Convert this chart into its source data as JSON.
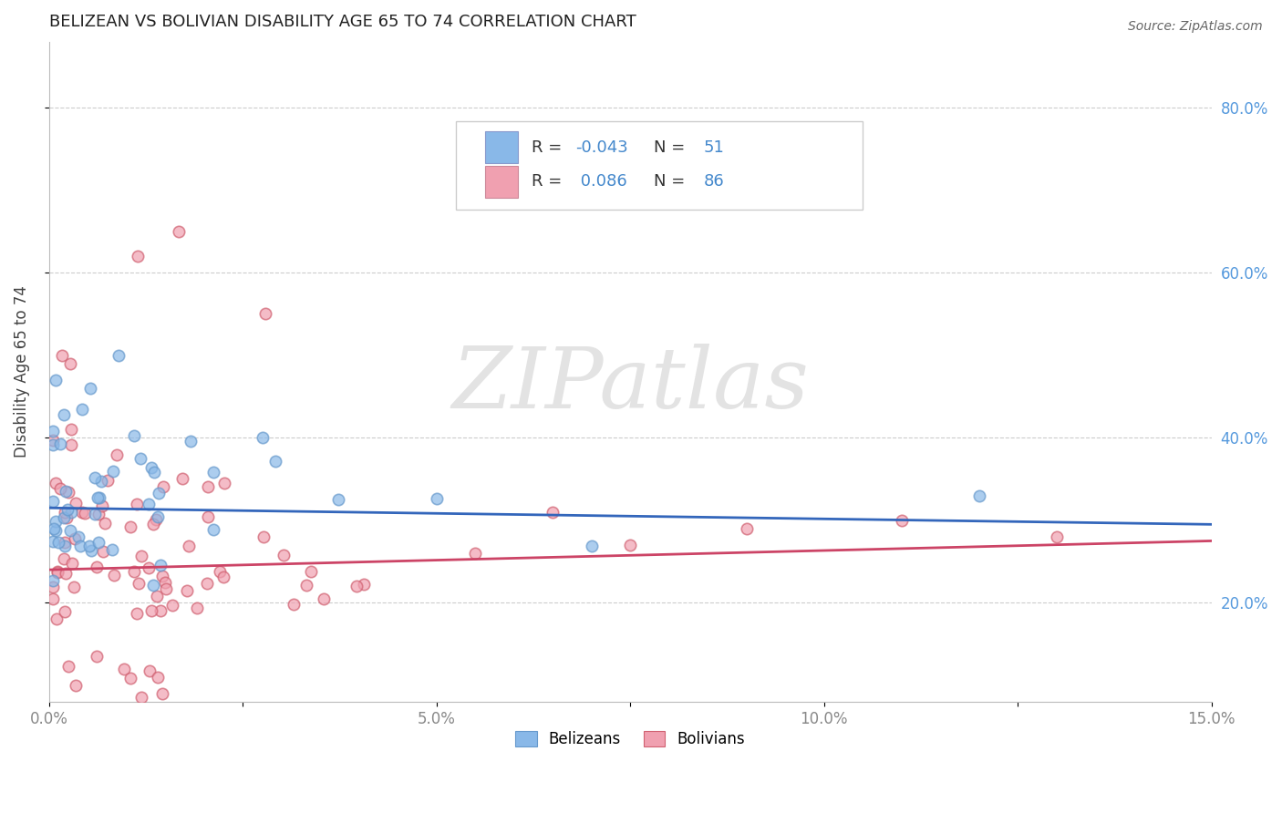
{
  "title": "BELIZEAN VS BOLIVIAN DISABILITY AGE 65 TO 74 CORRELATION CHART",
  "source_text": "Source: ZipAtlas.com",
  "ylabel": "Disability Age 65 to 74",
  "xlim": [
    0.0,
    0.15
  ],
  "ylim": [
    0.08,
    0.88
  ],
  "xtick_labels": [
    "0.0%",
    "",
    "5.0%",
    "",
    "10.0%",
    "",
    "15.0%"
  ],
  "xtick_values": [
    0.0,
    0.025,
    0.05,
    0.075,
    0.1,
    0.125,
    0.15
  ],
  "ytick_labels": [
    "20.0%",
    "40.0%",
    "60.0%",
    "80.0%"
  ],
  "ytick_values": [
    0.2,
    0.4,
    0.6,
    0.8
  ],
  "belizean_color": "#89b8e8",
  "bolivian_color": "#f0a0b0",
  "belizean_edge_color": "#6699cc",
  "bolivian_edge_color": "#d06070",
  "belizean_line_color": "#3366bb",
  "bolivian_line_color": "#cc4466",
  "legend_label_belizeans": "Belizeans",
  "legend_label_bolivians": "Bolivians",
  "R_belizean": -0.043,
  "N_belizean": 51,
  "R_bolivian": 0.086,
  "N_bolivian": 86,
  "watermark": "ZIPatlas",
  "background_color": "#ffffff",
  "grid_color": "#aaaaaa",
  "ytick_color": "#5599dd",
  "xtick_color": "#888888"
}
